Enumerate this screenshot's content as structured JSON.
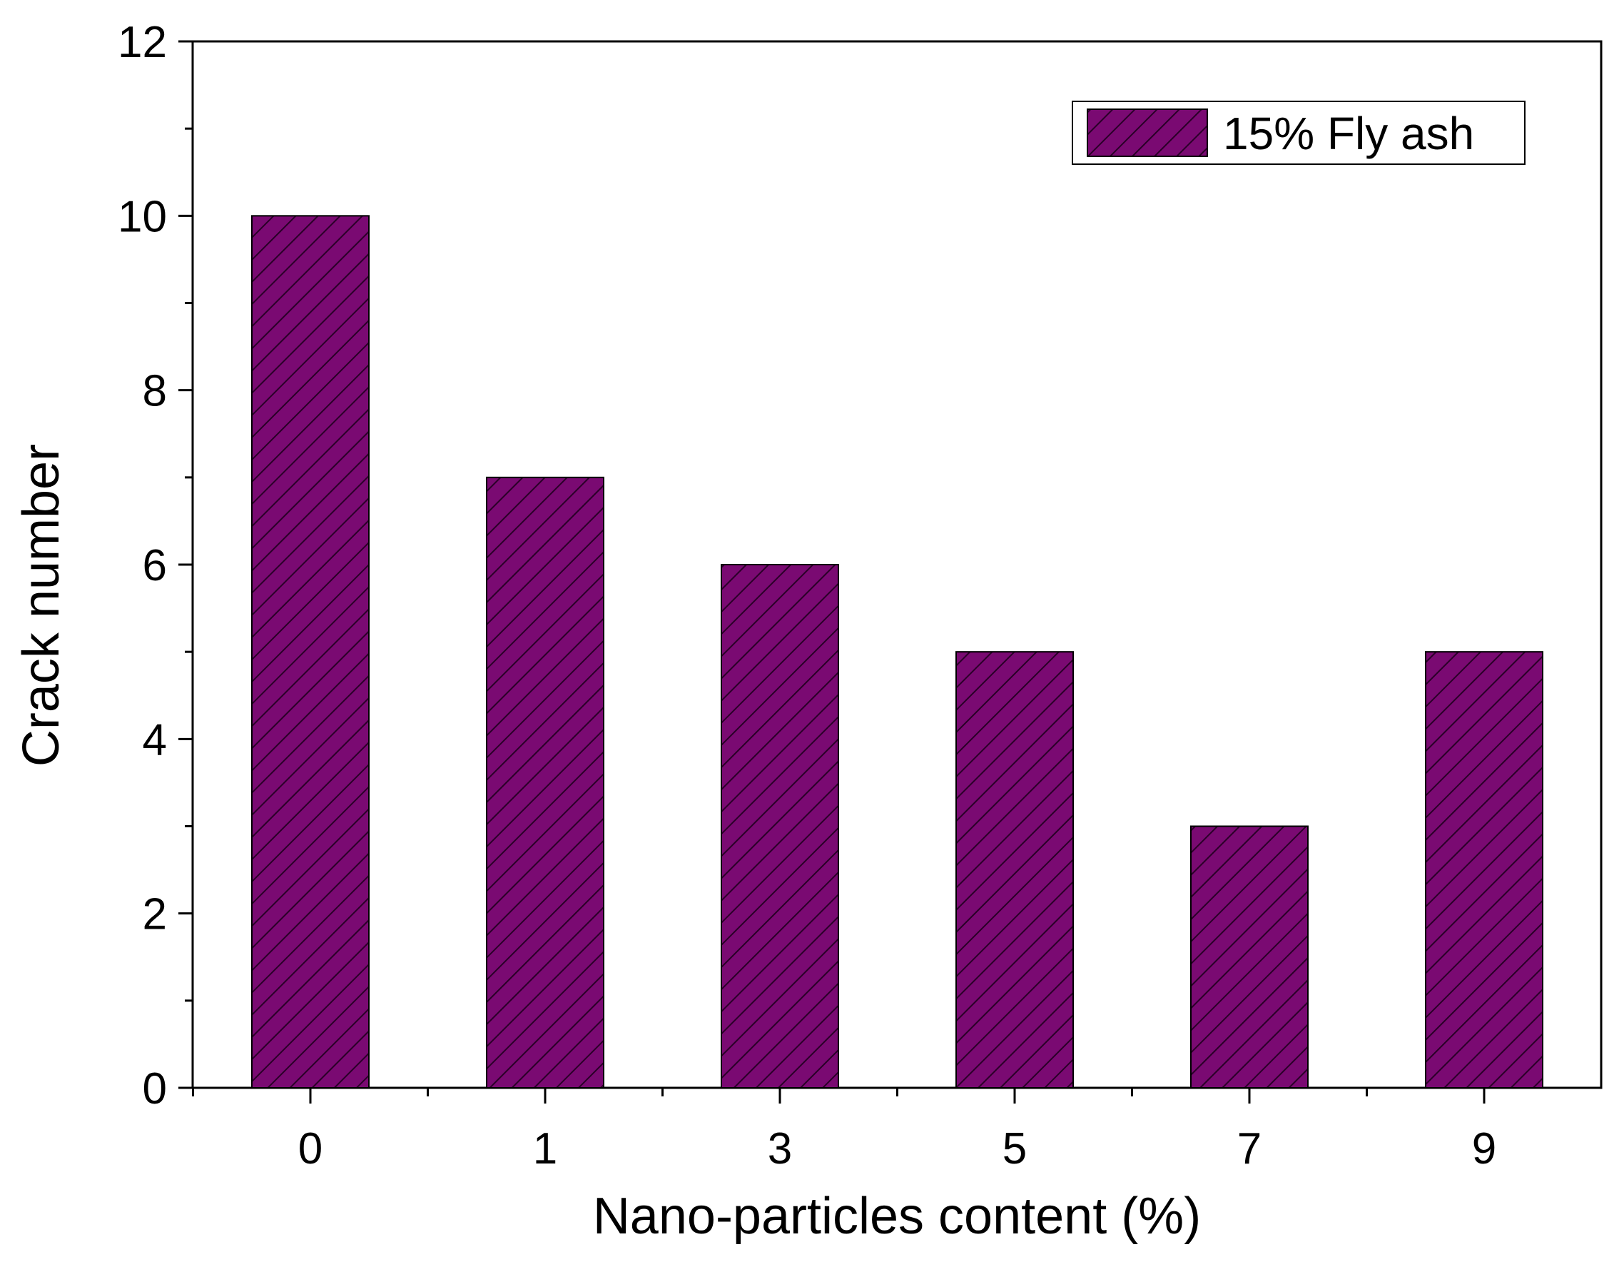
{
  "chart_data": {
    "type": "bar",
    "title": "",
    "xlabel": "Nano-particles content (%)",
    "ylabel": "Crack number",
    "categories": [
      "0",
      "1",
      "3",
      "5",
      "7",
      "9"
    ],
    "series": [
      {
        "name": "15% Fly ash",
        "values": [
          10,
          7,
          6,
          5,
          3,
          5
        ]
      }
    ],
    "ylim": [
      0,
      12
    ],
    "yticks": [
      "0",
      "2",
      "4",
      "6",
      "8",
      "10",
      "12"
    ],
    "grid": false,
    "legend_position": "top-right",
    "colors": {
      "bar_fill": "#7a0a72",
      "hatch": "#2a0028",
      "axis": "#000000"
    },
    "bar_pattern": "diagonal-hatch"
  }
}
